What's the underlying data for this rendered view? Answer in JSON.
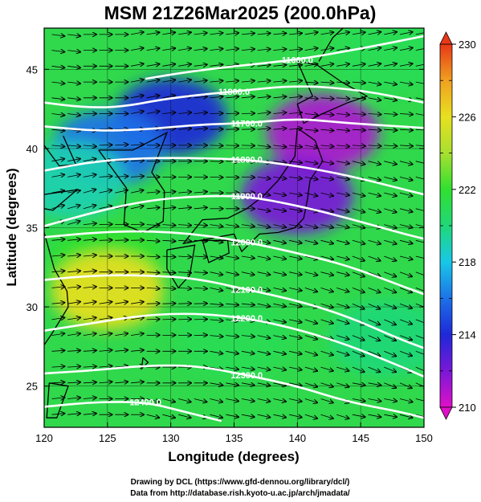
{
  "chart_data": {
    "type": "heatmap",
    "title": "MSM 21Z26Mar2025 (200.0hPa)",
    "xlabel": "Longitude (degrees)",
    "ylabel": "Latitude  (degrees)",
    "xlim": [
      120,
      150
    ],
    "ylim": [
      22.4,
      47.6
    ],
    "x_ticks": [
      120,
      125,
      130,
      135,
      140,
      145,
      150
    ],
    "y_ticks": [
      25,
      30,
      35,
      40,
      45
    ],
    "x_tick_labels": [
      "120",
      "125",
      "130",
      "135",
      "140",
      "145",
      "150"
    ],
    "y_tick_labels": [
      "25",
      "30",
      "35",
      "40",
      "45"
    ],
    "grid": true,
    "colorbar": {
      "min": 210,
      "max": 230,
      "ticks": [
        210,
        214,
        218,
        222,
        226,
        230
      ],
      "tick_labels": [
        "210",
        "214",
        "218",
        "222",
        "226",
        "230"
      ],
      "colors": [
        "#e010c8",
        "#7a18d8",
        "#1e28d8",
        "#1c72e8",
        "#18c8e8",
        "#20d878",
        "#30e030",
        "#a8e030",
        "#e8e020",
        "#f0a020",
        "#e83818"
      ]
    },
    "temperature_field": {
      "description_values": [
        {
          "lon": 142,
          "lat": 41,
          "value": 211
        },
        {
          "lon": 140,
          "lat": 37,
          "value": 212
        },
        {
          "lon": 130,
          "lat": 42,
          "value": 214
        },
        {
          "lon": 125,
          "lat": 40,
          "value": 216
        },
        {
          "lon": 122,
          "lat": 38,
          "value": 219
        },
        {
          "lon": 125,
          "lat": 33,
          "value": 222
        },
        {
          "lon": 125,
          "lat": 31,
          "value": 226
        },
        {
          "lon": 135,
          "lat": 28,
          "value": 221
        },
        {
          "lon": 147,
          "lat": 28,
          "value": 220
        },
        {
          "lon": 147,
          "lat": 46,
          "value": 221
        }
      ]
    },
    "contours": {
      "variable": "geopotential height",
      "levels": [
        {
          "label": "11600.0",
          "points": [
            [
              128,
              44.4
            ],
            [
              131,
              44.8
            ],
            [
              135,
              45.2
            ],
            [
              140,
              45.6
            ],
            [
              145,
              46.3
            ],
            [
              150,
              47.1
            ]
          ]
        },
        {
          "label": "11800.0",
          "points": [
            [
              120,
              42.9
            ],
            [
              123,
              42.6
            ],
            [
              126,
              42.6
            ],
            [
              130,
              43.2
            ],
            [
              135,
              43.6
            ],
            [
              140,
              44.0
            ],
            [
              145,
              43.7
            ],
            [
              150,
              42.9
            ]
          ]
        },
        {
          "label": "11700.0",
          "points": [
            [
              120,
              41.4
            ],
            [
              124,
              41.1
            ],
            [
              128,
              41.2
            ],
            [
              132,
              41.5
            ],
            [
              136,
              41.6
            ],
            [
              140,
              41.9
            ],
            [
              144,
              41.6
            ],
            [
              148,
              41.4
            ],
            [
              150,
              41.3
            ]
          ]
        },
        {
          "label": "11800.0",
          "points": [
            [
              120,
              38.6
            ],
            [
              124,
              39.2
            ],
            [
              128,
              39.4
            ],
            [
              132,
              39.4
            ],
            [
              136,
              39.3
            ],
            [
              140,
              38.9
            ],
            [
              144,
              38.3
            ],
            [
              148,
              37.5
            ],
            [
              150,
              37.1
            ]
          ]
        },
        {
          "label": "11900.0",
          "points": [
            [
              120,
              35.1
            ],
            [
              124,
              36.0
            ],
            [
              128,
              36.7
            ],
            [
              132,
              37.0
            ],
            [
              136,
              37.0
            ],
            [
              140,
              36.4
            ],
            [
              144,
              35.6
            ],
            [
              148,
              34.7
            ],
            [
              150,
              34.3
            ]
          ]
        },
        {
          "label": "12000.0",
          "points": [
            [
              120,
              34.4
            ],
            [
              124,
              34.7
            ],
            [
              128,
              34.8
            ],
            [
              132,
              34.6
            ],
            [
              136,
              34.1
            ],
            [
              140,
              33.4
            ],
            [
              144,
              32.6
            ],
            [
              148,
              31.4
            ],
            [
              150,
              30.8
            ]
          ]
        },
        {
          "label": "12100.0",
          "points": [
            [
              120,
              31.7
            ],
            [
              124,
              32.0
            ],
            [
              128,
              32.0
            ],
            [
              132,
              31.8
            ],
            [
              136,
              31.1
            ],
            [
              140,
              30.4
            ],
            [
              144,
              29.4
            ],
            [
              148,
              28.0
            ],
            [
              150,
              27.4
            ]
          ]
        },
        {
          "label": "12200.0",
          "points": [
            [
              120,
              28.5
            ],
            [
              124,
              29.0
            ],
            [
              128,
              29.5
            ],
            [
              132,
              29.6
            ],
            [
              136,
              29.3
            ],
            [
              140,
              28.6
            ],
            [
              144,
              27.6
            ],
            [
              148,
              26.3
            ],
            [
              150,
              25.6
            ]
          ]
        },
        {
          "label": "12300.0",
          "points": [
            [
              120,
              25.8
            ],
            [
              124,
              26.0
            ],
            [
              128,
              26.3
            ],
            [
              132,
              26.3
            ],
            [
              136,
              25.7
            ],
            [
              140,
              25.0
            ],
            [
              144,
              24.0
            ],
            [
              148,
              23.4
            ],
            [
              150,
              23.0
            ]
          ]
        },
        {
          "label": "12400.0",
          "points": [
            [
              120,
              23.7
            ],
            [
              124,
              24.0
            ],
            [
              128,
              24.0
            ],
            [
              131,
              23.4
            ],
            [
              134,
              22.8
            ]
          ]
        }
      ]
    },
    "vectors": {
      "variable": "wind",
      "description": "predominantly westerly, curving with height contours"
    }
  },
  "credits": {
    "line1": "Drawing by DCL (https://www.gfd-dennou.org/library/dcl/)",
    "line2": "Data from http://database.rish.kyoto-u.ac.jp/arch/jmadata/"
  }
}
